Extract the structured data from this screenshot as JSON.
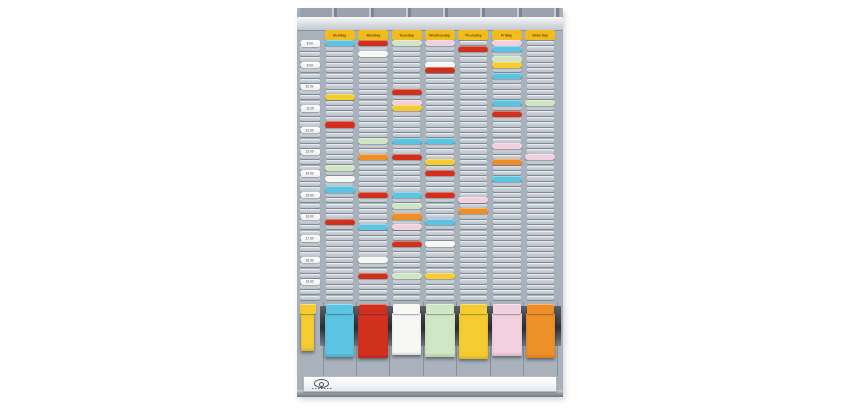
{
  "photo": {
    "subject": "t-card-weekly-planner-board",
    "days": [
      "Sunday",
      "Monday",
      "Tuesday",
      "Wednesday",
      "Thursday",
      "Friday",
      "Saturday"
    ],
    "times": [
      "8.00",
      "9.00",
      "10.00",
      "11.00",
      "12.00",
      "13.00",
      "14.00",
      "15.00",
      "16.00",
      "17.00",
      "18.00",
      "19.00"
    ],
    "rows_per_hour": 4,
    "total_rows": 48,
    "palette": {
      "board": "#a9b2bb",
      "slot": "#c6cdd4",
      "header_tab": "#f1bc1c",
      "header_text": "#6b4a00",
      "cyan": "#5cc3e2",
      "red": "#d2301f",
      "white": "#f7f8f6",
      "green": "#cfe5c3",
      "yellow": "#f6cb2f",
      "pink": "#f1cfdf",
      "orange": "#ee8e27"
    },
    "cards": [
      [
        0,
        0,
        "cyan"
      ],
      [
        0,
        10,
        "yellow"
      ],
      [
        0,
        15,
        "red"
      ],
      [
        0,
        23,
        "green"
      ],
      [
        0,
        25,
        "white"
      ],
      [
        0,
        27,
        "cyan"
      ],
      [
        0,
        33,
        "red"
      ],
      [
        1,
        0,
        "red"
      ],
      [
        1,
        2,
        "white"
      ],
      [
        1,
        18,
        "green"
      ],
      [
        1,
        21,
        "orange"
      ],
      [
        1,
        28,
        "red"
      ],
      [
        1,
        34,
        "cyan"
      ],
      [
        1,
        40,
        "white"
      ],
      [
        1,
        43,
        "red"
      ],
      [
        2,
        0,
        "green"
      ],
      [
        2,
        9,
        "red"
      ],
      [
        2,
        11,
        "pink"
      ],
      [
        2,
        12,
        "yellow"
      ],
      [
        2,
        18,
        "cyan"
      ],
      [
        2,
        21,
        "red"
      ],
      [
        2,
        28,
        "cyan"
      ],
      [
        2,
        30,
        "green"
      ],
      [
        2,
        32,
        "orange"
      ],
      [
        2,
        34,
        "pink"
      ],
      [
        2,
        37,
        "red"
      ],
      [
        2,
        43,
        "green"
      ],
      [
        3,
        0,
        "pink"
      ],
      [
        3,
        4,
        "white"
      ],
      [
        3,
        5,
        "red"
      ],
      [
        3,
        18,
        "cyan"
      ],
      [
        3,
        22,
        "yellow"
      ],
      [
        3,
        24,
        "red"
      ],
      [
        3,
        28,
        "red"
      ],
      [
        3,
        33,
        "cyan"
      ],
      [
        3,
        37,
        "white"
      ],
      [
        3,
        43,
        "yellow"
      ],
      [
        4,
        1,
        "red"
      ],
      [
        4,
        29,
        "pink"
      ],
      [
        4,
        31,
        "orange"
      ],
      [
        5,
        0,
        "pink"
      ],
      [
        5,
        1,
        "cyan"
      ],
      [
        5,
        3,
        "green"
      ],
      [
        5,
        4,
        "yellow"
      ],
      [
        5,
        6,
        "cyan"
      ],
      [
        5,
        11,
        "cyan"
      ],
      [
        5,
        13,
        "red"
      ],
      [
        5,
        19,
        "pink"
      ],
      [
        5,
        22,
        "orange"
      ],
      [
        5,
        25,
        "cyan"
      ],
      [
        6,
        11,
        "green"
      ],
      [
        6,
        21,
        "pink"
      ]
    ],
    "bottom_cards": [
      "cyan",
      "red",
      "white",
      "green",
      "yellow",
      "pink",
      "orange"
    ],
    "bottom_card_heights": [
      44,
      45,
      42,
      44,
      46,
      43,
      45
    ],
    "time_column_bottom_card": "yellow",
    "brand": {
      "logo": "oval-eye-logo",
      "text_legible": false
    }
  }
}
